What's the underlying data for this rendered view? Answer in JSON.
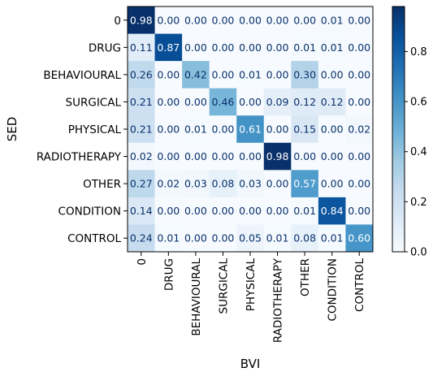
{
  "chart_data": {
    "type": "heatmap",
    "title": "",
    "xlabel": "BVI",
    "ylabel": "SED",
    "x_categories": [
      "0",
      "DRUG",
      "BEHAVIOURAL",
      "SURGICAL",
      "PHYSICAL",
      "RADIOTHERAPY",
      "OTHER",
      "CONDITION",
      "CONTROL"
    ],
    "y_categories": [
      "0",
      "DRUG",
      "BEHAVIOURAL",
      "SURGICAL",
      "PHYSICAL",
      "RADIOTHERAPY",
      "OTHER",
      "CONDITION",
      "CONTROL"
    ],
    "values": [
      [
        0.98,
        0.0,
        0.0,
        0.0,
        0.0,
        0.0,
        0.0,
        0.01,
        0.0
      ],
      [
        0.11,
        0.87,
        0.0,
        0.0,
        0.0,
        0.0,
        0.01,
        0.01,
        0.0
      ],
      [
        0.26,
        0.0,
        0.42,
        0.0,
        0.01,
        0.0,
        0.3,
        0.0,
        0.0
      ],
      [
        0.21,
        0.0,
        0.0,
        0.46,
        0.0,
        0.09,
        0.12,
        0.12,
        0.0
      ],
      [
        0.21,
        0.0,
        0.01,
        0.0,
        0.61,
        0.0,
        0.15,
        0.0,
        0.02
      ],
      [
        0.02,
        0.0,
        0.0,
        0.0,
        0.0,
        0.98,
        0.0,
        0.0,
        0.0
      ],
      [
        0.27,
        0.02,
        0.03,
        0.08,
        0.03,
        0.0,
        0.57,
        0.0,
        0.0
      ],
      [
        0.14,
        0.0,
        0.0,
        0.0,
        0.0,
        0.0,
        0.01,
        0.84,
        0.0
      ],
      [
        0.24,
        0.01,
        0.0,
        0.0,
        0.05,
        0.01,
        0.08,
        0.01,
        0.6
      ]
    ],
    "value_format": "2-decimal",
    "colormap": "Blues",
    "colorbar": {
      "range": [
        0.0,
        0.98
      ],
      "ticks": [
        0.0,
        0.2,
        0.4,
        0.6,
        0.8
      ],
      "tick_labels": [
        "0.0",
        "0.2",
        "0.4",
        "0.6",
        "0.8"
      ]
    },
    "grid": false,
    "colors": {
      "low": "#f7fbff",
      "high": "#08306b",
      "text_dark": "#08306b",
      "text_light": "#ffffff"
    }
  }
}
